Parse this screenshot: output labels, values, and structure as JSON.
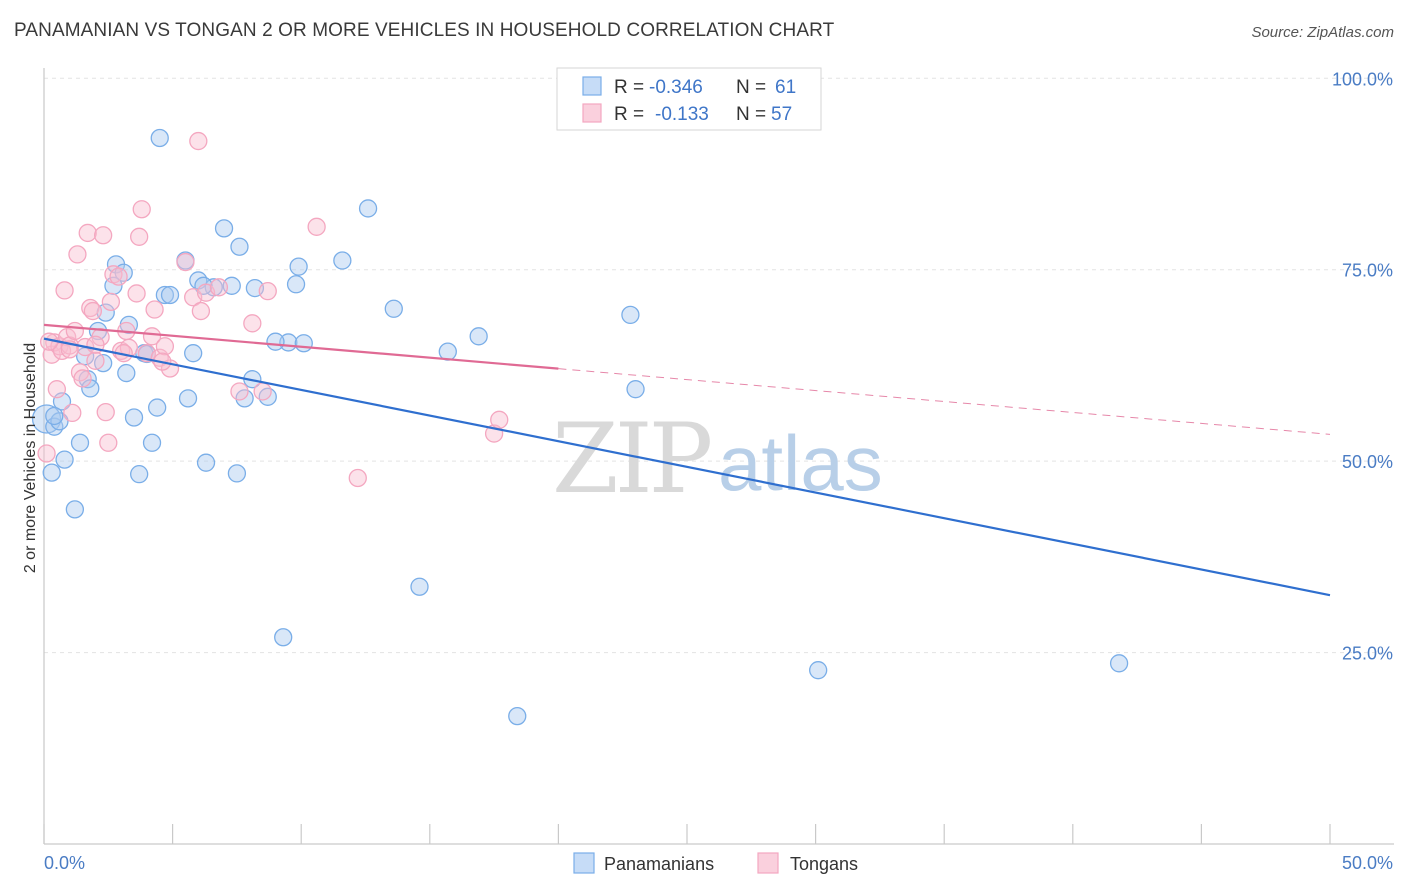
{
  "title": "PANAMANIAN VS TONGAN 2 OR MORE VEHICLES IN HOUSEHOLD CORRELATION CHART",
  "source": "Source: ZipAtlas.com",
  "watermark": {
    "zip": "ZIP",
    "atlas": "atlas"
  },
  "legend_box": {
    "rows": [
      {
        "r_label": "R =",
        "r_value": "-0.346",
        "n_label": "N =",
        "n_value": "61"
      },
      {
        "r_label": "R =",
        "r_value": "-0.133",
        "n_label": "N =",
        "n_value": "57"
      }
    ]
  },
  "chart_data": {
    "type": "scatter",
    "title": "PANAMANIAN VS TONGAN 2 OR MORE VEHICLES IN HOUSEHOLD CORRELATION CHART",
    "xlabel": "",
    "ylabel": "2 or more Vehicles in Household",
    "xlim": [
      0,
      50
    ],
    "ylim": [
      0,
      105
    ],
    "x_tick_labels": [
      "0.0%",
      "50.0%"
    ],
    "y_ticks": [
      25,
      50,
      75,
      100
    ],
    "y_tick_labels": [
      "25.0%",
      "50.0%",
      "75.0%",
      "100.0%"
    ],
    "grid": true,
    "legend_position": "bottom-center",
    "series": [
      {
        "name": "Panamanians",
        "color": "#7aaee8",
        "line_color": "#2f6fcf",
        "r": -0.346,
        "n": 61,
        "trend": {
          "x": [
            0,
            50
          ],
          "y": [
            66.0,
            32.5
          ],
          "dashed_from": null
        },
        "points": [
          [
            0.1,
            55.5
          ],
          [
            0.3,
            48.5
          ],
          [
            0.4,
            54.5
          ],
          [
            0.6,
            55.2
          ],
          [
            0.7,
            57.8
          ],
          [
            0.8,
            50.2
          ],
          [
            1.2,
            43.7
          ],
          [
            1.4,
            52.4
          ],
          [
            1.6,
            63.7
          ],
          [
            1.7,
            60.7
          ],
          [
            1.8,
            59.5
          ],
          [
            2.1,
            67.0
          ],
          [
            2.4,
            69.4
          ],
          [
            2.7,
            72.9
          ],
          [
            2.8,
            75.7
          ],
          [
            3.1,
            74.6
          ],
          [
            3.2,
            61.5
          ],
          [
            3.3,
            67.8
          ],
          [
            3.5,
            55.7
          ],
          [
            3.7,
            48.3
          ],
          [
            3.9,
            64.1
          ],
          [
            4.2,
            52.4
          ],
          [
            4.4,
            57.0
          ],
          [
            4.5,
            92.2
          ],
          [
            4.7,
            71.7
          ],
          [
            4.9,
            71.7
          ],
          [
            5.5,
            76.2
          ],
          [
            5.6,
            58.2
          ],
          [
            5.8,
            64.1
          ],
          [
            6.0,
            73.6
          ],
          [
            6.3,
            49.8
          ],
          [
            6.6,
            72.7
          ],
          [
            7.0,
            80.4
          ],
          [
            7.3,
            72.9
          ],
          [
            7.5,
            48.4
          ],
          [
            7.6,
            78.0
          ],
          [
            7.8,
            58.2
          ],
          [
            8.1,
            60.7
          ],
          [
            8.2,
            72.6
          ],
          [
            8.7,
            58.4
          ],
          [
            9.3,
            27.0
          ],
          [
            9.5,
            65.5
          ],
          [
            9.8,
            73.1
          ],
          [
            9.9,
            75.4
          ],
          [
            10.1,
            65.4
          ],
          [
            11.6,
            76.2
          ],
          [
            12.6,
            83.0
          ],
          [
            13.6,
            69.9
          ],
          [
            14.6,
            33.6
          ],
          [
            15.7,
            64.3
          ],
          [
            16.9,
            66.3
          ],
          [
            18.4,
            16.7
          ],
          [
            22.8,
            69.1
          ],
          [
            23.0,
            59.4
          ],
          [
            30.1,
            22.7
          ],
          [
            41.8,
            23.6
          ],
          [
            0.4,
            55.9
          ],
          [
            2.3,
            62.8
          ],
          [
            4.0,
            64.0
          ],
          [
            6.2,
            72.9
          ],
          [
            9.0,
            65.6
          ]
        ]
      },
      {
        "name": "Tongans",
        "color": "#f4a7c0",
        "line_color": "#e06a94",
        "r": -0.133,
        "n": 57,
        "trend": {
          "x": [
            0,
            50
          ],
          "y": [
            67.8,
            53.5
          ],
          "dashed_from": 20
        },
        "points": [
          [
            0.1,
            51.0
          ],
          [
            0.3,
            63.9
          ],
          [
            0.4,
            65.5
          ],
          [
            0.5,
            59.4
          ],
          [
            0.6,
            65.0
          ],
          [
            0.7,
            64.4
          ],
          [
            0.8,
            72.3
          ],
          [
            0.9,
            66.2
          ],
          [
            1.0,
            65.1
          ],
          [
            1.1,
            56.3
          ],
          [
            1.2,
            67.0
          ],
          [
            1.3,
            77.0
          ],
          [
            1.4,
            61.6
          ],
          [
            1.5,
            60.8
          ],
          [
            1.6,
            64.9
          ],
          [
            1.7,
            79.8
          ],
          [
            1.8,
            70.0
          ],
          [
            1.9,
            69.6
          ],
          [
            2.0,
            63.1
          ],
          [
            2.2,
            66.2
          ],
          [
            2.3,
            79.5
          ],
          [
            2.4,
            56.4
          ],
          [
            2.5,
            52.4
          ],
          [
            2.6,
            70.8
          ],
          [
            2.7,
            74.4
          ],
          [
            2.9,
            74.1
          ],
          [
            3.0,
            64.4
          ],
          [
            3.2,
            67.0
          ],
          [
            3.3,
            64.8
          ],
          [
            3.6,
            71.9
          ],
          [
            3.7,
            79.3
          ],
          [
            3.8,
            82.9
          ],
          [
            4.0,
            64.1
          ],
          [
            4.2,
            66.3
          ],
          [
            4.3,
            69.8
          ],
          [
            4.5,
            63.5
          ],
          [
            4.7,
            65.0
          ],
          [
            4.9,
            62.1
          ],
          [
            5.5,
            76.0
          ],
          [
            5.8,
            71.4
          ],
          [
            6.0,
            91.8
          ],
          [
            6.1,
            69.6
          ],
          [
            6.3,
            72.0
          ],
          [
            7.6,
            59.1
          ],
          [
            8.1,
            68.0
          ],
          [
            8.5,
            59.1
          ],
          [
            8.7,
            72.2
          ],
          [
            10.6,
            80.6
          ],
          [
            12.2,
            47.8
          ],
          [
            17.5,
            53.6
          ],
          [
            17.7,
            55.4
          ],
          [
            0.2,
            65.6
          ],
          [
            1.0,
            64.6
          ],
          [
            2.0,
            65.2
          ],
          [
            3.1,
            64.1
          ],
          [
            4.6,
            63.0
          ],
          [
            6.8,
            72.7
          ]
        ]
      }
    ]
  }
}
